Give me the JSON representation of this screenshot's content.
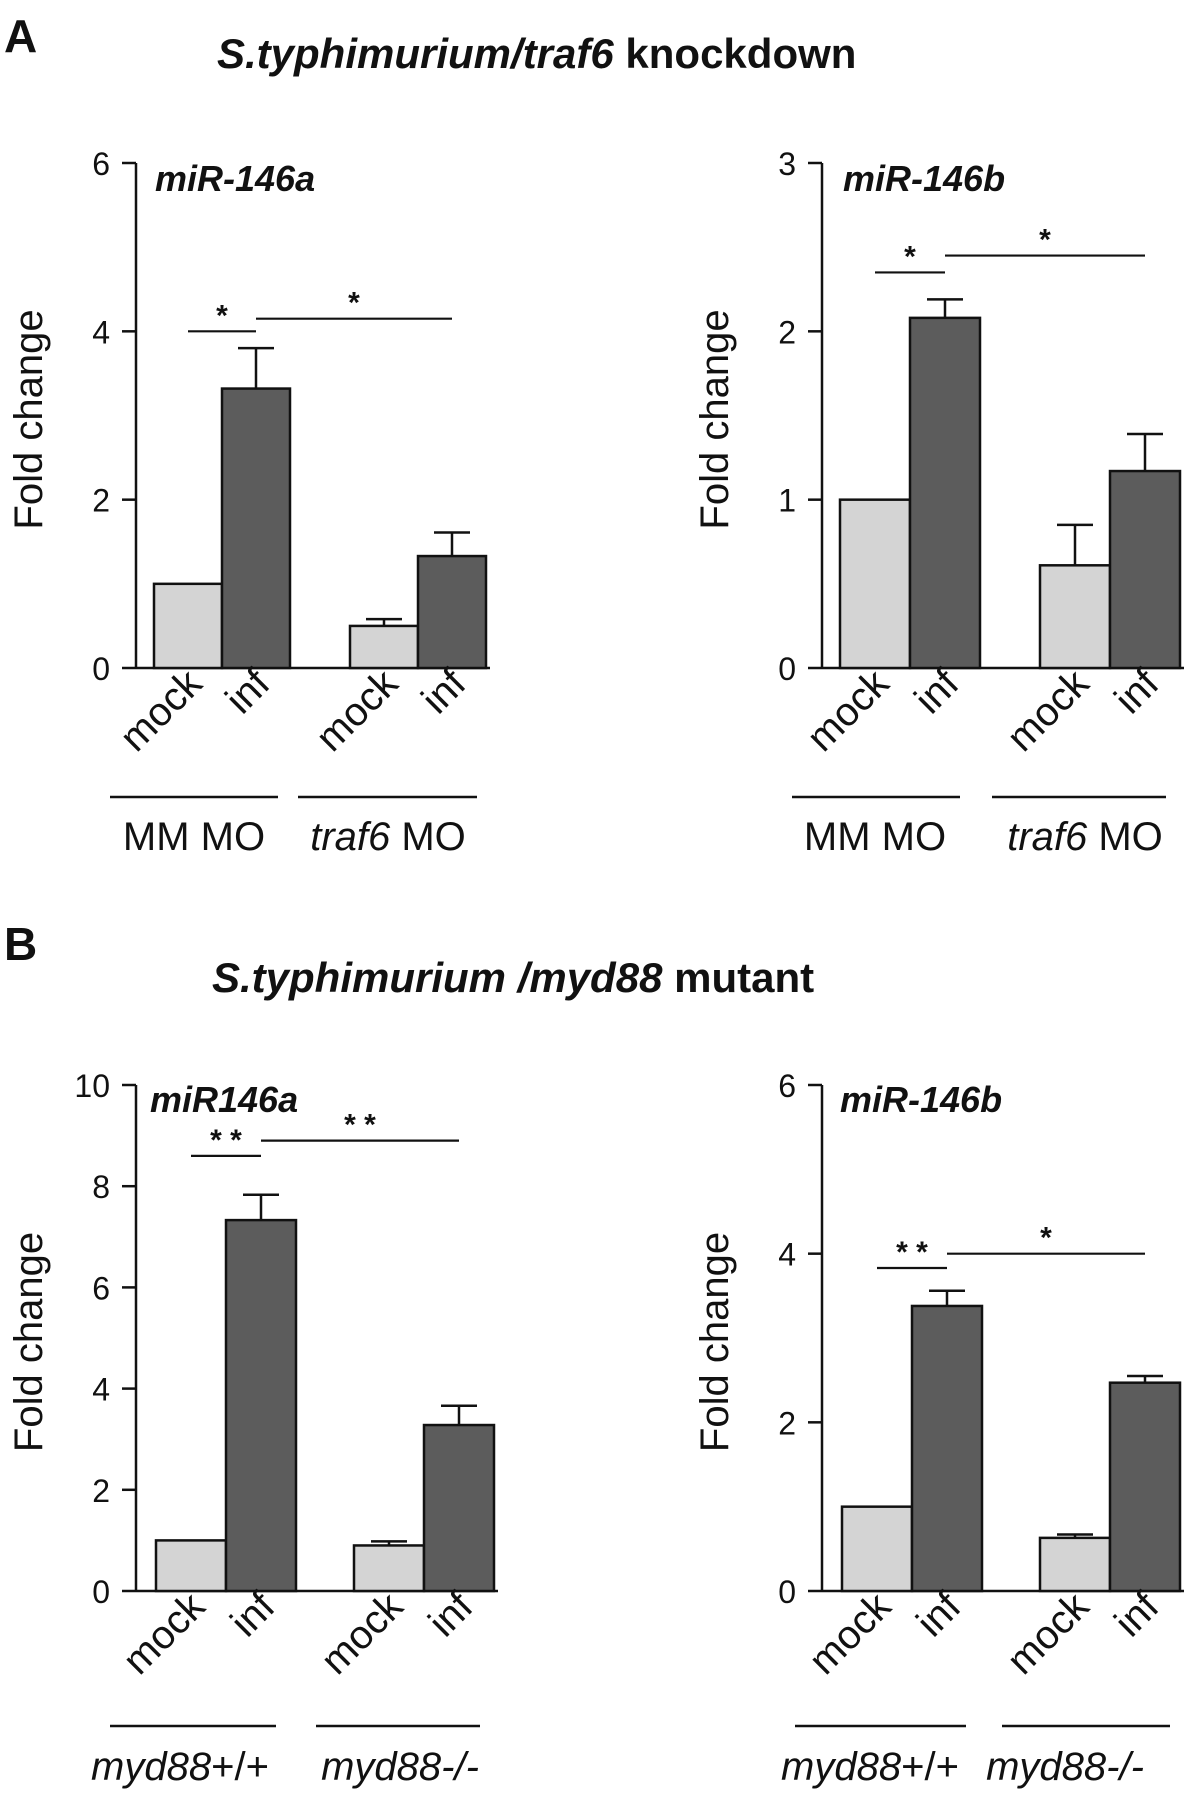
{
  "sections": [
    {
      "letter": "A",
      "title_italic": "S.typhimurium/traf6",
      "title_rest": " knockdown"
    },
    {
      "letter": "B",
      "title_italic": "S.typhimurium /myd88",
      "title_rest": " mutant"
    }
  ],
  "colors": {
    "mock": "#d4d4d4",
    "inf": "#5c5c5c",
    "axis": "#111111"
  },
  "chart_data": [
    {
      "type": "bar",
      "section": "A",
      "title": "miR-146a",
      "ylabel": "Fold change",
      "ylim": [
        0,
        6
      ],
      "yticks": [
        0,
        2,
        4,
        6
      ],
      "categories": [
        "mock",
        "inf",
        "mock",
        "inf"
      ],
      "values": [
        1.0,
        3.32,
        0.5,
        1.33
      ],
      "errors": [
        0,
        0.48,
        0.08,
        0.28
      ],
      "bar_colors": [
        "mock",
        "inf",
        "mock",
        "inf"
      ],
      "groups": [
        {
          "label_parts": [
            {
              "text": "MM MO",
              "italic": false
            }
          ]
        },
        {
          "label_parts": [
            {
              "text": "traf6",
              "italic": true
            },
            {
              "text": " MO",
              "italic": false
            }
          ]
        }
      ],
      "significance": [
        {
          "from": 0,
          "to": 1,
          "label": "*",
          "y": 4.0
        },
        {
          "from": 1,
          "to": 3,
          "label": "*",
          "y": 4.15
        }
      ]
    },
    {
      "type": "bar",
      "section": "A",
      "title": "miR-146b",
      "ylabel": "Fold change",
      "ylim": [
        0,
        3
      ],
      "yticks": [
        0,
        1,
        2,
        3
      ],
      "categories": [
        "mock",
        "inf",
        "mock",
        "inf"
      ],
      "values": [
        1.0,
        2.08,
        0.61,
        1.17
      ],
      "errors": [
        0,
        0.11,
        0.24,
        0.22
      ],
      "bar_colors": [
        "mock",
        "inf",
        "mock",
        "inf"
      ],
      "groups": [
        {
          "label_parts": [
            {
              "text": "MM MO",
              "italic": false
            }
          ]
        },
        {
          "label_parts": [
            {
              "text": "traf6",
              "italic": true
            },
            {
              "text": " MO",
              "italic": false
            }
          ]
        }
      ],
      "significance": [
        {
          "from": 0,
          "to": 1,
          "label": "*",
          "y": 2.35
        },
        {
          "from": 1,
          "to": 3,
          "label": "*",
          "y": 2.45
        }
      ]
    },
    {
      "type": "bar",
      "section": "B",
      "title": "miR146a",
      "ylabel": "Fold change",
      "ylim": [
        0,
        10
      ],
      "yticks": [
        0,
        2,
        4,
        6,
        8,
        10
      ],
      "categories": [
        "mock",
        "inf",
        "mock",
        "inf"
      ],
      "values": [
        1.0,
        7.33,
        0.9,
        3.28
      ],
      "errors": [
        0,
        0.5,
        0.08,
        0.38
      ],
      "bar_colors": [
        "mock",
        "inf",
        "mock",
        "inf"
      ],
      "groups": [
        {
          "label_parts": [
            {
              "text": "myd88",
              "italic": true
            },
            {
              "text": "+/+",
              "italic": false
            }
          ]
        },
        {
          "label_parts": [
            {
              "text": "myd88-/-",
              "italic": true
            }
          ]
        }
      ],
      "significance": [
        {
          "from": 0,
          "to": 1,
          "label": "* *",
          "y": 8.6
        },
        {
          "from": 1,
          "to": 3,
          "label": "* *",
          "y": 8.9
        }
      ]
    },
    {
      "type": "bar",
      "section": "B",
      "title": "miR-146b",
      "ylabel": "Fold change",
      "ylim": [
        0,
        6
      ],
      "yticks": [
        0,
        2,
        4,
        6
      ],
      "categories": [
        "mock",
        "inf",
        "mock",
        "inf"
      ],
      "values": [
        1.0,
        3.38,
        0.63,
        2.47
      ],
      "errors": [
        0,
        0.18,
        0.04,
        0.08
      ],
      "bar_colors": [
        "mock",
        "inf",
        "mock",
        "inf"
      ],
      "groups": [
        {
          "label_parts": [
            {
              "text": "myd88",
              "italic": true
            },
            {
              "text": "+/+",
              "italic": false
            }
          ]
        },
        {
          "label_parts": [
            {
              "text": "myd88-/-",
              "italic": true
            }
          ]
        }
      ],
      "significance": [
        {
          "from": 0,
          "to": 1,
          "label": "* *",
          "y": 3.83
        },
        {
          "from": 1,
          "to": 3,
          "label": "*",
          "y": 4.0
        }
      ]
    }
  ]
}
